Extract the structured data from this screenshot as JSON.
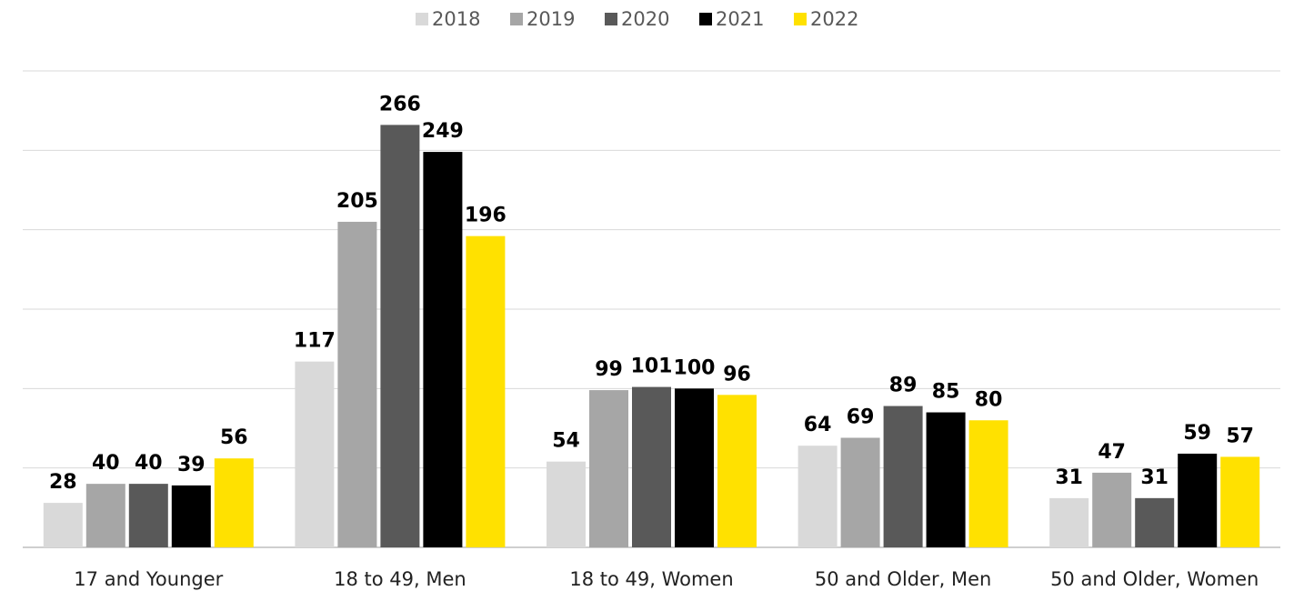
{
  "chart_data": {
    "type": "bar",
    "categories": [
      "17 and Younger",
      "18 to 49, Men",
      "18 to 49, Women",
      "50 and Older, Men",
      "50 and Older, Women"
    ],
    "series": [
      {
        "name": "2018",
        "color": "#d9d9d9",
        "values": [
          28,
          117,
          54,
          64,
          31
        ]
      },
      {
        "name": "2019",
        "color": "#a6a6a6",
        "values": [
          40,
          205,
          99,
          69,
          47
        ]
      },
      {
        "name": "2020",
        "color": "#595959",
        "values": [
          40,
          266,
          101,
          89,
          31
        ]
      },
      {
        "name": "2021",
        "color": "#000000",
        "values": [
          39,
          249,
          100,
          85,
          59
        ]
      },
      {
        "name": "2022",
        "color": "#ffe100",
        "values": [
          56,
          196,
          96,
          80,
          57
        ]
      }
    ],
    "ylim": [
      0,
      300
    ],
    "yticks": [
      0,
      50,
      100,
      150,
      200,
      250,
      300
    ],
    "grid": true,
    "legend": "top"
  }
}
